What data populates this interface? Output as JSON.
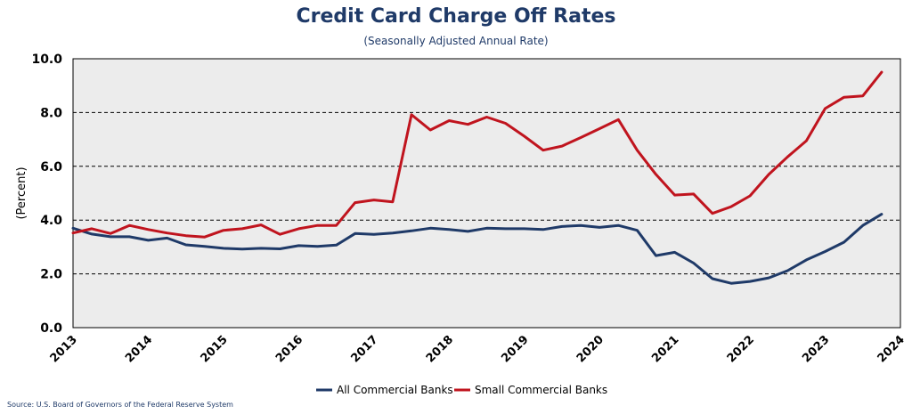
{
  "chart_data": {
    "type": "line",
    "title": "Credit Card Charge Off Rates",
    "subtitle": "(Seasonally Adjusted Annual Rate)",
    "ylabel": "(Percent)",
    "xlabel": "",
    "ylim": [
      0,
      10
    ],
    "xlim": [
      2013,
      2024
    ],
    "yticks": [
      "0.0",
      "2.0",
      "4.0",
      "6.0",
      "8.0",
      "10.0"
    ],
    "xticks": [
      "2013",
      "2014",
      "2015",
      "2016",
      "2017",
      "2018",
      "2019",
      "2020",
      "2021",
      "2022",
      "2023",
      "2024"
    ],
    "grid": "horizontal dashed",
    "legend_position": "bottom-center",
    "series": [
      {
        "name": "All Commercial Banks",
        "color": "#1f3a68",
        "x": [
          2013.0,
          2013.25,
          2013.5,
          2013.75,
          2014.0,
          2014.25,
          2014.5,
          2014.75,
          2015.0,
          2015.25,
          2015.5,
          2015.75,
          2016.0,
          2016.25,
          2016.5,
          2016.75,
          2017.0,
          2017.25,
          2017.5,
          2017.75,
          2018.0,
          2018.25,
          2018.5,
          2018.75,
          2019.0,
          2019.25,
          2019.5,
          2019.75,
          2020.0,
          2020.25,
          2020.5,
          2020.75,
          2021.0,
          2021.25,
          2021.5,
          2021.75,
          2022.0,
          2022.25,
          2022.5,
          2022.75,
          2023.0,
          2023.25,
          2023.5,
          2023.75
        ],
        "values": [
          3.7,
          3.48,
          3.38,
          3.38,
          3.25,
          3.33,
          3.08,
          3.02,
          2.95,
          2.92,
          2.95,
          2.93,
          3.05,
          3.02,
          3.07,
          3.5,
          3.47,
          3.52,
          3.6,
          3.7,
          3.65,
          3.58,
          3.7,
          3.68,
          3.68,
          3.65,
          3.76,
          3.8,
          3.73,
          3.8,
          3.62,
          2.68,
          2.8,
          2.4,
          1.82,
          1.65,
          1.72,
          1.85,
          2.12,
          2.52,
          2.83,
          3.18,
          3.8,
          4.22
        ]
      },
      {
        "name": "Small Commercial Banks",
        "color": "#c0141e",
        "x": [
          2013.0,
          2013.25,
          2013.5,
          2013.75,
          2014.0,
          2014.25,
          2014.5,
          2014.75,
          2015.0,
          2015.25,
          2015.5,
          2015.75,
          2016.0,
          2016.25,
          2016.5,
          2016.75,
          2017.0,
          2017.25,
          2017.5,
          2017.75,
          2018.0,
          2018.25,
          2018.5,
          2018.75,
          2019.0,
          2019.25,
          2019.5,
          2019.75,
          2020.0,
          2020.25,
          2020.5,
          2020.75,
          2021.0,
          2021.25,
          2021.5,
          2021.75,
          2022.0,
          2022.25,
          2022.5,
          2022.75,
          2023.0,
          2023.25,
          2023.5,
          2023.75
        ],
        "values": [
          3.52,
          3.68,
          3.5,
          3.8,
          3.65,
          3.52,
          3.42,
          3.37,
          3.62,
          3.68,
          3.82,
          3.47,
          3.68,
          3.8,
          3.8,
          4.65,
          4.75,
          4.68,
          7.92,
          7.35,
          7.7,
          7.56,
          7.83,
          7.6,
          7.12,
          6.6,
          6.75,
          7.07,
          7.4,
          7.74,
          6.6,
          5.7,
          4.93,
          4.97,
          4.25,
          4.5,
          4.9,
          5.7,
          6.35,
          6.95,
          8.15,
          8.57,
          8.62,
          9.5
        ]
      }
    ]
  },
  "source": "Source: U.S. Board of Governors of the Federal Reserve System"
}
